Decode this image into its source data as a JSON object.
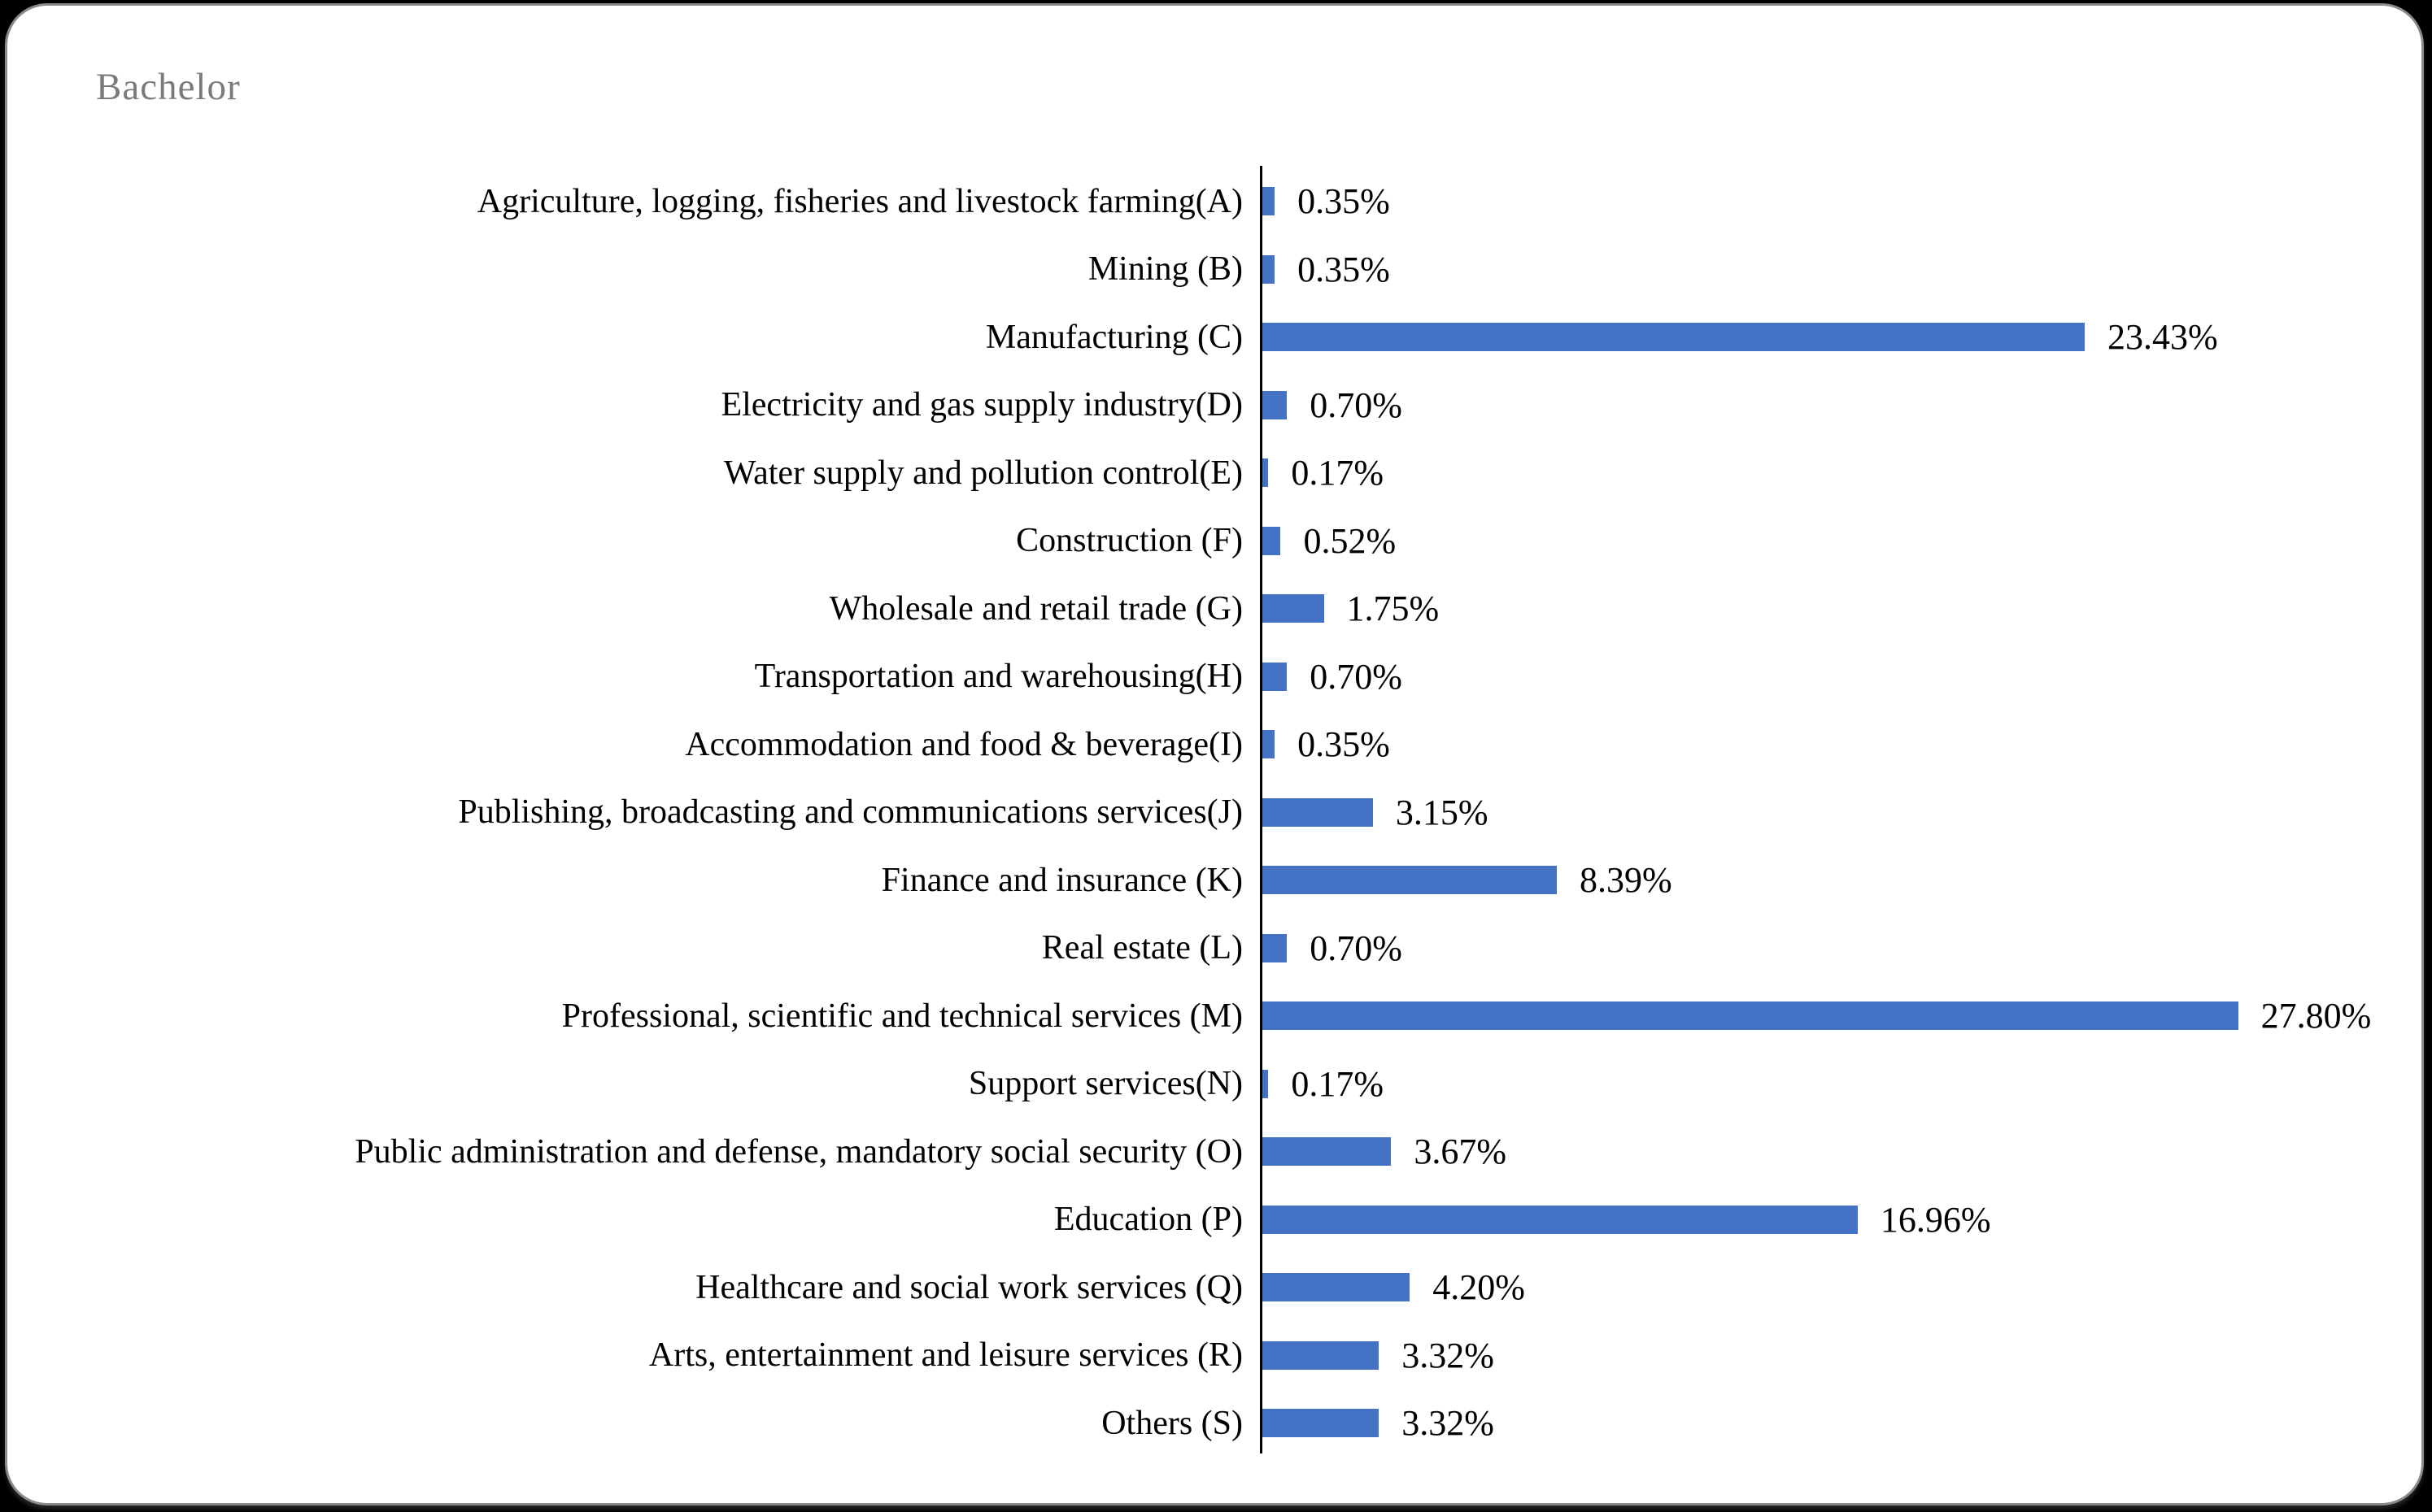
{
  "window": {
    "title": "Bachelor"
  },
  "colors": {
    "bar": "#4472C4",
    "title_text": "#7b7b7b",
    "category_text": "#000000",
    "value_text": "#000000",
    "axis_line": "#000000",
    "card_background": "#ffffff",
    "card_border": "#8a8a8a",
    "page_background": "#000000"
  },
  "chart_data": {
    "type": "bar",
    "orientation": "horizontal",
    "title": "Bachelor",
    "xlabel": "",
    "ylabel": "",
    "xlim": [
      0,
      27.8
    ],
    "grid": false,
    "legend": false,
    "value_label_format": "0.00%",
    "categories": [
      "Agriculture, logging, fisheries and livestock farming(A)",
      "Mining (B)",
      "Manufacturing (C)",
      "Electricity and gas supply industry(D)",
      "Water supply and pollution control(E)",
      "Construction (F)",
      "Wholesale and retail trade (G)",
      "Transportation and warehousing(H)",
      "Accommodation and food & beverage(I)",
      "Publishing, broadcasting and communications services(J)",
      "Finance and insurance (K)",
      "Real estate (L)",
      "Professional, scientific and technical services (M)",
      "Support services(N)",
      "Public administration and defense, mandatory social security (O)",
      "Education (P)",
      "Healthcare and social work services (Q)",
      "Arts, entertainment and leisure services (R)",
      "Others (S)"
    ],
    "values": [
      0.35,
      0.35,
      23.43,
      0.7,
      0.17,
      0.52,
      1.75,
      0.7,
      0.35,
      3.15,
      8.39,
      0.7,
      27.8,
      0.17,
      3.67,
      16.96,
      4.2,
      3.32,
      3.32
    ],
    "value_labels": [
      "0.35%",
      "0.35%",
      "23.43%",
      "0.70%",
      "0.17%",
      "0.52%",
      "1.75%",
      "0.70%",
      "0.35%",
      "3.15%",
      "8.39%",
      "0.70%",
      "27.80%",
      "0.17%",
      "3.67%",
      "16.96%",
      "4.20%",
      "3.32%",
      "3.32%"
    ]
  }
}
